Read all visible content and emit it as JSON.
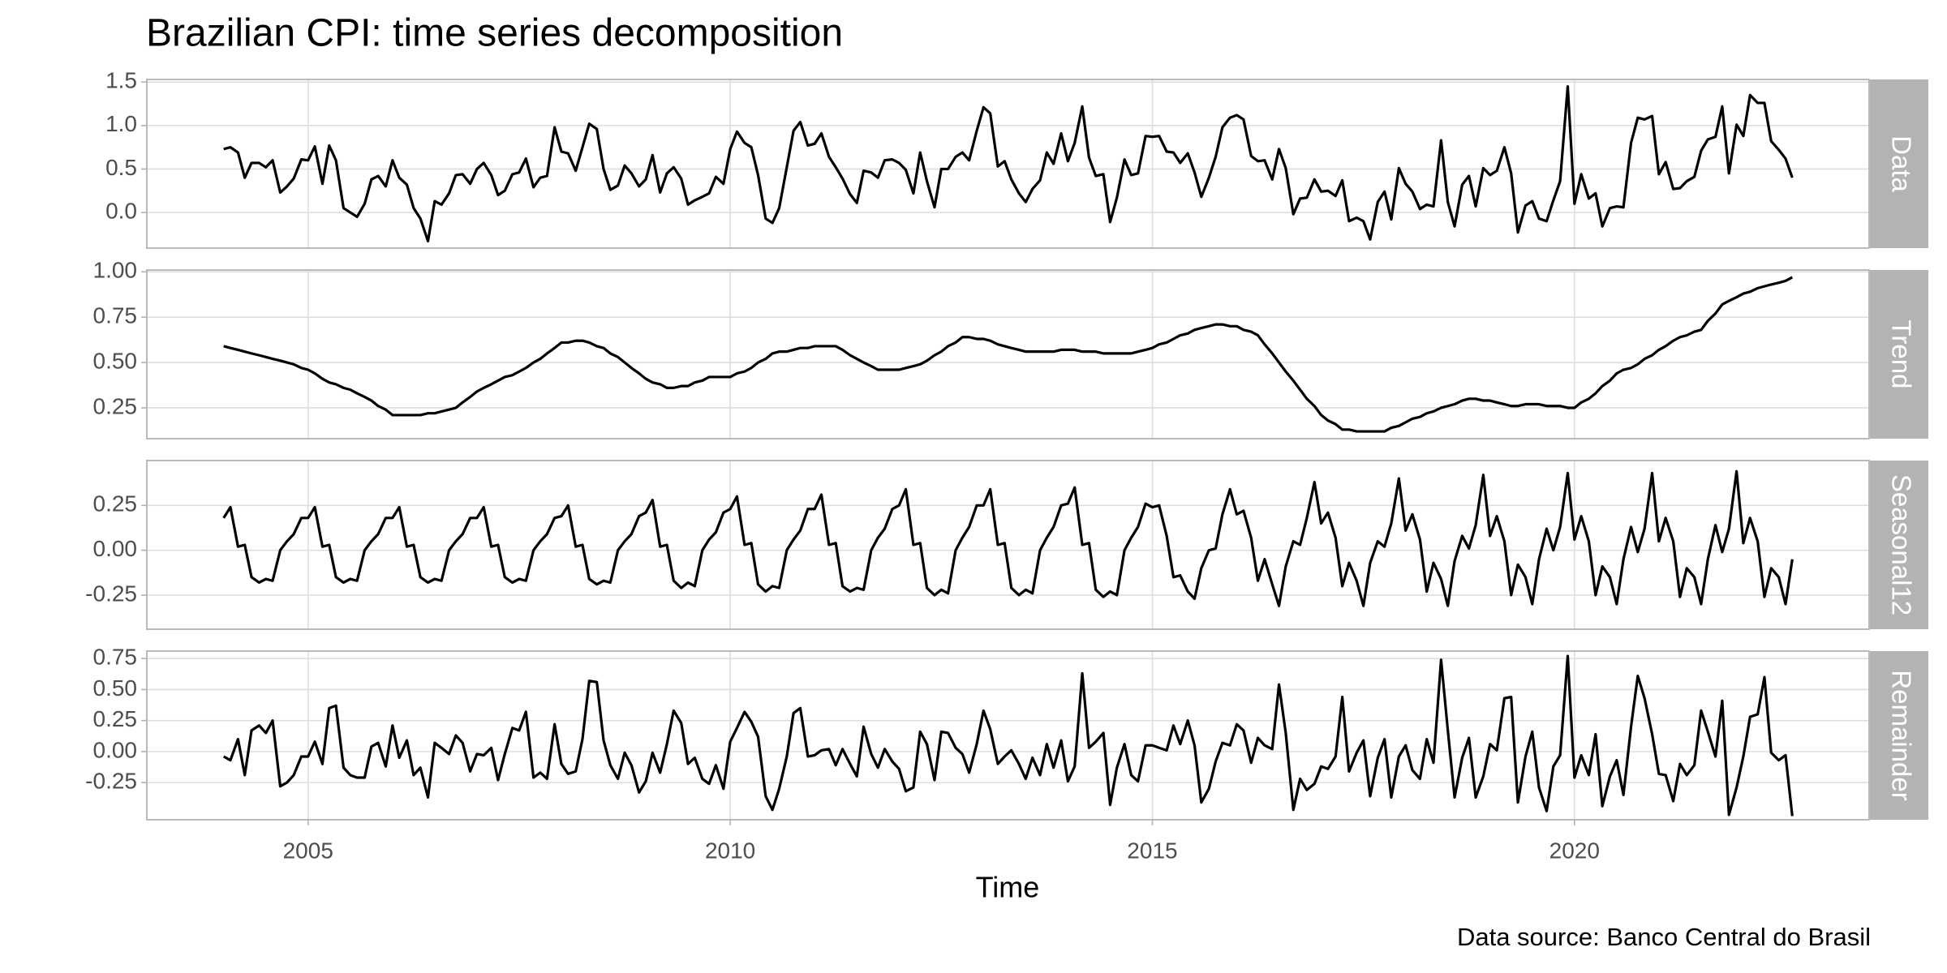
{
  "chart_data": {
    "type": "line",
    "title": "Brazilian CPI: time series decomposition",
    "xlabel": "Time",
    "caption": "Data source: Banco Central do Brasil",
    "grid": true,
    "xlim": [
      2003.09,
      2023.49
    ],
    "xticks": [
      2005,
      2010,
      2015,
      2020
    ],
    "x": [
      2004,
      2004.08,
      2004.17,
      2004.25,
      2004.33,
      2004.42,
      2004.5,
      2004.58,
      2004.67,
      2004.75,
      2004.83,
      2004.92,
      2005,
      2005.08,
      2005.17,
      2005.25,
      2005.33,
      2005.42,
      2005.5,
      2005.58,
      2005.67,
      2005.75,
      2005.83,
      2005.92,
      2006,
      2006.08,
      2006.17,
      2006.25,
      2006.33,
      2006.42,
      2006.5,
      2006.58,
      2006.67,
      2006.75,
      2006.83,
      2006.92,
      2007,
      2007.08,
      2007.17,
      2007.25,
      2007.33,
      2007.42,
      2007.5,
      2007.58,
      2007.67,
      2007.75,
      2007.83,
      2007.92,
      2008,
      2008.08,
      2008.17,
      2008.25,
      2008.33,
      2008.42,
      2008.5,
      2008.58,
      2008.67,
      2008.75,
      2008.83,
      2008.92,
      2009,
      2009.08,
      2009.17,
      2009.25,
      2009.33,
      2009.42,
      2009.5,
      2009.58,
      2009.67,
      2009.75,
      2009.83,
      2009.92,
      2010,
      2010.08,
      2010.17,
      2010.25,
      2010.33,
      2010.42,
      2010.5,
      2010.58,
      2010.67,
      2010.75,
      2010.83,
      2010.92,
      2011,
      2011.08,
      2011.17,
      2011.25,
      2011.33,
      2011.42,
      2011.5,
      2011.58,
      2011.67,
      2011.75,
      2011.83,
      2011.92,
      2012,
      2012.08,
      2012.17,
      2012.25,
      2012.33,
      2012.42,
      2012.5,
      2012.58,
      2012.67,
      2012.75,
      2012.83,
      2012.92,
      2013,
      2013.08,
      2013.17,
      2013.25,
      2013.33,
      2013.42,
      2013.5,
      2013.58,
      2013.67,
      2013.75,
      2013.83,
      2013.92,
      2014,
      2014.08,
      2014.17,
      2014.25,
      2014.33,
      2014.42,
      2014.5,
      2014.58,
      2014.67,
      2014.75,
      2014.83,
      2014.92,
      2015,
      2015.08,
      2015.17,
      2015.25,
      2015.33,
      2015.42,
      2015.5,
      2015.58,
      2015.67,
      2015.75,
      2015.83,
      2015.92,
      2016,
      2016.08,
      2016.17,
      2016.25,
      2016.33,
      2016.42,
      2016.5,
      2016.58,
      2016.67,
      2016.75,
      2016.83,
      2016.92,
      2017,
      2017.08,
      2017.17,
      2017.25,
      2017.33,
      2017.42,
      2017.5,
      2017.58,
      2017.67,
      2017.75,
      2017.83,
      2017.92,
      2018,
      2018.08,
      2018.17,
      2018.25,
      2018.33,
      2018.42,
      2018.5,
      2018.58,
      2018.67,
      2018.75,
      2018.83,
      2018.92,
      2019,
      2019.08,
      2019.17,
      2019.25,
      2019.33,
      2019.42,
      2019.5,
      2019.58,
      2019.67,
      2019.75,
      2019.83,
      2019.92,
      2020,
      2020.08,
      2020.17,
      2020.25,
      2020.33,
      2020.42,
      2020.5,
      2020.58,
      2020.67,
      2020.75,
      2020.83,
      2020.92,
      2021,
      2021.08,
      2021.17,
      2021.25,
      2021.33,
      2021.42,
      2021.5,
      2021.58,
      2021.67,
      2021.75,
      2021.83,
      2021.92,
      2022,
      2022.08,
      2022.17,
      2022.25,
      2022.33,
      2022.42,
      2022.5,
      2022.58
    ],
    "series": [
      {
        "name": "Data",
        "color": "#000000",
        "ylim": [
          -0.41,
          1.53
        ],
        "yticks": [
          {
            "value": 0,
            "label": "0.0"
          },
          0.5,
          {
            "value": 1,
            "label": "1.0"
          },
          1.5
        ],
        "values": [
          0.73,
          0.75,
          0.69,
          0.4,
          0.57,
          0.57,
          0.52,
          0.6,
          0.23,
          0.3,
          0.39,
          0.61,
          0.6,
          0.76,
          0.33,
          0.77,
          0.6,
          0.05,
          0.0,
          -0.05,
          0.1,
          0.38,
          0.42,
          0.3,
          0.6,
          0.4,
          0.32,
          0.05,
          -0.07,
          -0.33,
          0.13,
          0.09,
          0.22,
          0.43,
          0.44,
          0.33,
          0.5,
          0.57,
          0.43,
          0.2,
          0.25,
          0.44,
          0.46,
          0.62,
          0.29,
          0.4,
          0.42,
          0.98,
          0.7,
          0.68,
          0.48,
          0.75,
          1.02,
          0.96,
          0.5,
          0.26,
          0.31,
          0.54,
          0.45,
          0.3,
          0.38,
          0.66,
          0.23,
          0.45,
          0.52,
          0.39,
          0.09,
          0.14,
          0.18,
          0.22,
          0.41,
          0.33,
          0.73,
          0.93,
          0.8,
          0.75,
          0.43,
          -0.07,
          -0.12,
          0.05,
          0.52,
          0.94,
          1.04,
          0.77,
          0.79,
          0.91,
          0.64,
          0.52,
          0.39,
          0.21,
          0.11,
          0.48,
          0.46,
          0.4,
          0.6,
          0.61,
          0.57,
          0.49,
          0.22,
          0.69,
          0.36,
          0.06,
          0.5,
          0.5,
          0.64,
          0.69,
          0.6,
          0.94,
          1.21,
          1.14,
          0.53,
          0.59,
          0.38,
          0.22,
          0.12,
          0.27,
          0.37,
          0.69,
          0.56,
          0.91,
          0.59,
          0.8,
          1.22,
          0.63,
          0.42,
          0.44,
          -0.11,
          0.17,
          0.61,
          0.43,
          0.45,
          0.88,
          0.87,
          0.88,
          0.7,
          0.69,
          0.57,
          0.68,
          0.46,
          0.18,
          0.4,
          0.64,
          0.98,
          1.09,
          1.12,
          1.07,
          0.65,
          0.59,
          0.6,
          0.38,
          0.73,
          0.51,
          -0.02,
          0.16,
          0.17,
          0.38,
          0.24,
          0.25,
          0.19,
          0.37,
          -0.1,
          -0.06,
          -0.1,
          -0.31,
          0.12,
          0.24,
          -0.08,
          0.51,
          0.33,
          0.24,
          0.04,
          0.09,
          0.07,
          0.83,
          0.12,
          -0.16,
          0.32,
          0.42,
          0.07,
          0.51,
          0.43,
          0.48,
          0.75,
          0.45,
          -0.23,
          0.08,
          0.13,
          -0.07,
          -0.1,
          0.14,
          0.36,
          1.45,
          0.1,
          0.44,
          0.16,
          0.22,
          -0.16,
          0.05,
          0.07,
          0.06,
          0.8,
          1.09,
          1.07,
          1.11,
          0.44,
          0.58,
          0.27,
          0.28,
          0.36,
          0.41,
          0.71,
          0.84,
          0.87,
          1.22,
          0.45,
          1.01,
          0.88,
          1.35,
          1.26,
          1.26,
          0.82,
          0.72,
          0.62,
          0.4
        ]
      },
      {
        "name": "Trend",
        "color": "#000000",
        "ylim": [
          0.08,
          1.01
        ],
        "yticks": [
          0.25,
          {
            "value": 0.5,
            "label": "0.50"
          },
          0.75,
          {
            "value": 1,
            "label": "1.00"
          }
        ],
        "values": [
          0.59,
          0.58,
          0.57,
          0.56,
          0.55,
          0.54,
          0.53,
          0.52,
          0.51,
          0.5,
          0.49,
          0.47,
          0.46,
          0.44,
          0.41,
          0.39,
          0.38,
          0.36,
          0.35,
          0.33,
          0.31,
          0.29,
          0.26,
          0.24,
          0.21,
          0.21,
          0.21,
          0.21,
          0.21,
          0.22,
          0.22,
          0.23,
          0.24,
          0.25,
          0.28,
          0.31,
          0.34,
          0.36,
          0.38,
          0.4,
          0.42,
          0.43,
          0.45,
          0.47,
          0.5,
          0.52,
          0.55,
          0.58,
          0.61,
          0.61,
          0.62,
          0.62,
          0.61,
          0.59,
          0.58,
          0.55,
          0.53,
          0.5,
          0.47,
          0.44,
          0.41,
          0.39,
          0.38,
          0.36,
          0.36,
          0.37,
          0.37,
          0.39,
          0.4,
          0.42,
          0.42,
          0.42,
          0.42,
          0.44,
          0.45,
          0.47,
          0.5,
          0.52,
          0.55,
          0.56,
          0.56,
          0.57,
          0.58,
          0.58,
          0.59,
          0.59,
          0.59,
          0.59,
          0.57,
          0.54,
          0.52,
          0.5,
          0.48,
          0.46,
          0.46,
          0.46,
          0.46,
          0.47,
          0.48,
          0.49,
          0.51,
          0.54,
          0.56,
          0.59,
          0.61,
          0.64,
          0.64,
          0.63,
          0.63,
          0.62,
          0.6,
          0.59,
          0.58,
          0.57,
          0.56,
          0.56,
          0.56,
          0.56,
          0.56,
          0.57,
          0.57,
          0.57,
          0.56,
          0.56,
          0.56,
          0.55,
          0.55,
          0.55,
          0.55,
          0.55,
          0.56,
          0.57,
          0.58,
          0.6,
          0.61,
          0.63,
          0.65,
          0.66,
          0.68,
          0.69,
          0.7,
          0.71,
          0.71,
          0.7,
          0.7,
          0.68,
          0.67,
          0.65,
          0.6,
          0.55,
          0.5,
          0.45,
          0.4,
          0.35,
          0.3,
          0.26,
          0.21,
          0.18,
          0.16,
          0.13,
          0.13,
          0.12,
          0.12,
          0.12,
          0.12,
          0.12,
          0.14,
          0.15,
          0.17,
          0.19,
          0.2,
          0.22,
          0.23,
          0.25,
          0.26,
          0.27,
          0.29,
          0.3,
          0.3,
          0.29,
          0.29,
          0.28,
          0.27,
          0.26,
          0.26,
          0.27,
          0.27,
          0.27,
          0.26,
          0.26,
          0.26,
          0.25,
          0.25,
          0.28,
          0.3,
          0.33,
          0.37,
          0.4,
          0.44,
          0.46,
          0.47,
          0.49,
          0.52,
          0.54,
          0.57,
          0.59,
          0.62,
          0.64,
          0.65,
          0.67,
          0.68,
          0.73,
          0.77,
          0.82,
          0.84,
          0.86,
          0.88,
          0.89,
          0.91,
          0.92,
          0.93,
          0.94,
          0.95,
          0.97
        ]
      },
      {
        "name": "Seasonal12",
        "color": "#000000",
        "ylim": [
          -0.44,
          0.5
        ],
        "yticks": [
          -0.25,
          {
            "value": 0,
            "label": "0.00"
          },
          0.25
        ],
        "values": [
          0.18,
          0.24,
          0.02,
          0.03,
          -0.15,
          -0.18,
          -0.16,
          -0.17,
          0.0,
          0.05,
          0.09,
          0.18,
          0.18,
          0.24,
          0.02,
          0.03,
          -0.15,
          -0.18,
          -0.16,
          -0.17,
          0.0,
          0.05,
          0.09,
          0.18,
          0.18,
          0.24,
          0.02,
          0.03,
          -0.15,
          -0.18,
          -0.16,
          -0.17,
          0.0,
          0.05,
          0.09,
          0.18,
          0.18,
          0.24,
          0.02,
          0.03,
          -0.15,
          -0.18,
          -0.16,
          -0.17,
          0.0,
          0.05,
          0.09,
          0.18,
          0.19,
          0.25,
          0.02,
          0.03,
          -0.16,
          -0.19,
          -0.17,
          -0.18,
          0.0,
          0.05,
          0.09,
          0.19,
          0.21,
          0.28,
          0.02,
          0.03,
          -0.17,
          -0.21,
          -0.18,
          -0.2,
          0.0,
          0.06,
          0.1,
          0.21,
          0.23,
          0.3,
          0.03,
          0.04,
          -0.19,
          -0.23,
          -0.2,
          -0.21,
          0.0,
          0.06,
          0.11,
          0.23,
          0.23,
          0.31,
          0.03,
          0.04,
          -0.2,
          -0.23,
          -0.21,
          -0.22,
          0.0,
          0.07,
          0.12,
          0.23,
          0.25,
          0.34,
          0.03,
          0.04,
          -0.21,
          -0.25,
          -0.22,
          -0.24,
          0.0,
          0.07,
          0.13,
          0.25,
          0.25,
          0.34,
          0.03,
          0.04,
          -0.21,
          -0.25,
          -0.22,
          -0.24,
          0.0,
          0.07,
          0.13,
          0.25,
          0.26,
          0.35,
          0.03,
          0.04,
          -0.22,
          -0.26,
          -0.23,
          -0.25,
          0.0,
          0.07,
          0.13,
          0.26,
          0.24,
          0.25,
          0.08,
          -0.15,
          -0.14,
          -0.23,
          -0.27,
          -0.1,
          0.0,
          0.01,
          0.2,
          0.34,
          0.2,
          0.22,
          0.07,
          -0.17,
          -0.05,
          -0.19,
          -0.31,
          -0.09,
          0.05,
          0.03,
          0.18,
          0.38,
          0.15,
          0.21,
          0.07,
          -0.2,
          -0.07,
          -0.17,
          -0.31,
          -0.07,
          0.05,
          0.02,
          0.15,
          0.4,
          0.11,
          0.2,
          0.06,
          -0.23,
          -0.07,
          -0.16,
          -0.31,
          -0.06,
          0.08,
          0.01,
          0.14,
          0.42,
          0.08,
          0.19,
          0.05,
          -0.25,
          -0.08,
          -0.15,
          -0.3,
          -0.05,
          0.12,
          0.0,
          0.13,
          0.43,
          0.06,
          0.19,
          0.05,
          -0.25,
          -0.09,
          -0.15,
          -0.3,
          -0.05,
          0.13,
          -0.01,
          0.12,
          0.43,
          0.05,
          0.18,
          0.05,
          -0.26,
          -0.1,
          -0.15,
          -0.3,
          -0.05,
          0.14,
          -0.01,
          0.12,
          0.44,
          0.04,
          0.18,
          0.05,
          -0.26,
          -0.1,
          -0.15,
          -0.3,
          -0.05
        ]
      },
      {
        "name": "Remainder",
        "color": "#000000",
        "ylim": [
          -0.55,
          0.81
        ],
        "yticks": [
          -0.25,
          {
            "value": 0,
            "label": "0.00"
          },
          0.25,
          {
            "value": 0.5,
            "label": "0.50"
          },
          0.75
        ],
        "values": [
          -0.04,
          -0.07,
          0.1,
          -0.19,
          0.17,
          0.21,
          0.15,
          0.25,
          -0.28,
          -0.25,
          -0.19,
          -0.04,
          -0.04,
          0.08,
          -0.1,
          0.35,
          0.37,
          -0.13,
          -0.19,
          -0.21,
          -0.21,
          0.04,
          0.07,
          -0.12,
          0.21,
          -0.05,
          0.09,
          -0.19,
          -0.13,
          -0.37,
          0.07,
          0.03,
          -0.02,
          0.13,
          0.07,
          -0.16,
          -0.02,
          -0.03,
          0.03,
          -0.23,
          -0.02,
          0.19,
          0.17,
          0.32,
          -0.21,
          -0.17,
          -0.22,
          0.22,
          -0.1,
          -0.18,
          -0.16,
          0.1,
          0.57,
          0.56,
          0.09,
          -0.11,
          -0.22,
          -0.01,
          -0.11,
          -0.33,
          -0.24,
          -0.01,
          -0.17,
          0.06,
          0.33,
          0.23,
          -0.1,
          -0.05,
          -0.22,
          -0.26,
          -0.11,
          -0.3,
          0.08,
          0.19,
          0.32,
          0.24,
          0.12,
          -0.36,
          -0.47,
          -0.3,
          -0.04,
          0.31,
          0.35,
          -0.04,
          -0.03,
          0.01,
          0.02,
          -0.11,
          0.02,
          -0.1,
          -0.2,
          0.2,
          -0.02,
          -0.13,
          0.02,
          -0.08,
          -0.14,
          -0.32,
          -0.29,
          0.16,
          0.06,
          -0.23,
          0.16,
          0.15,
          0.03,
          -0.02,
          -0.17,
          0.06,
          0.33,
          0.18,
          -0.1,
          -0.04,
          0.01,
          -0.1,
          -0.22,
          -0.05,
          -0.19,
          0.06,
          -0.13,
          0.09,
          -0.24,
          -0.12,
          0.63,
          0.03,
          0.08,
          0.15,
          -0.43,
          -0.13,
          0.06,
          -0.19,
          -0.24,
          0.05,
          0.05,
          0.03,
          0.01,
          0.21,
          0.06,
          0.25,
          0.05,
          -0.41,
          -0.3,
          -0.08,
          0.07,
          0.05,
          0.22,
          0.17,
          -0.09,
          0.11,
          0.05,
          0.02,
          0.54,
          0.15,
          -0.47,
          -0.22,
          -0.31,
          -0.26,
          -0.12,
          -0.14,
          -0.04,
          0.44,
          -0.16,
          -0.01,
          0.09,
          -0.36,
          -0.05,
          0.1,
          -0.37,
          -0.04,
          0.05,
          -0.15,
          -0.22,
          0.1,
          -0.09,
          0.74,
          0.17,
          -0.37,
          -0.05,
          0.11,
          -0.37,
          -0.2,
          0.06,
          0.01,
          0.43,
          0.44,
          -0.41,
          -0.04,
          0.16,
          -0.29,
          -0.48,
          -0.12,
          -0.03,
          0.77,
          -0.21,
          -0.03,
          -0.19,
          0.14,
          -0.44,
          -0.2,
          -0.07,
          -0.35,
          0.2,
          0.61,
          0.43,
          0.14,
          -0.18,
          -0.19,
          -0.4,
          -0.1,
          -0.19,
          -0.11,
          0.33,
          0.16,
          -0.04,
          0.41,
          -0.51,
          -0.29,
          -0.04,
          0.28,
          0.3,
          0.6,
          -0.01,
          -0.07,
          -0.03,
          -0.52
        ]
      }
    ]
  }
}
